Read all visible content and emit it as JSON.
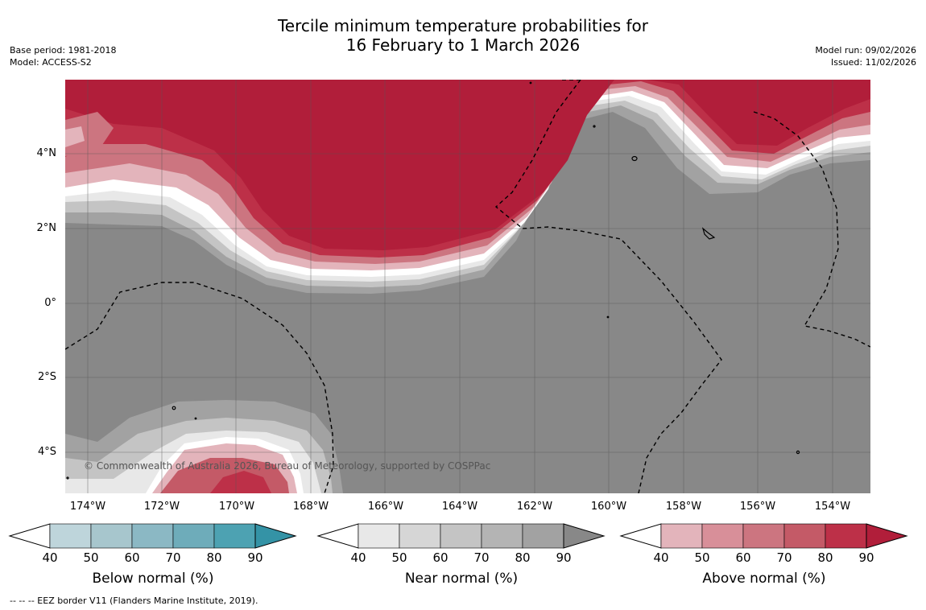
{
  "title": {
    "line1": "Tercile minimum temperature probabilities for",
    "line2": "16 February to 1 March 2026"
  },
  "meta_left": {
    "base_period": "Base period: 1981-2018",
    "model": "Model: ACCESS-S2"
  },
  "meta_right": {
    "model_run": "Model run: 09/02/2026",
    "issued": "Issued: 11/02/2026"
  },
  "lat_labels": [
    "4°N",
    "2°N",
    "0°",
    "2°S",
    "4°S"
  ],
  "lon_labels": [
    "174°W",
    "172°W",
    "170°W",
    "168°W",
    "166°W",
    "164°W",
    "162°W",
    "160°W",
    "158°W",
    "156°W",
    "154°W"
  ],
  "copyright": "© Commonwealth of Australia 2026, Bureau of Meteorology, supported by COSPPac",
  "footer": "--  --  -- EEZ border V11 (Flanders Marine Institute, 2019).",
  "colorbars": [
    {
      "label": "Below normal (%)",
      "ticks": [
        "40",
        "50",
        "60",
        "70",
        "80",
        "90"
      ],
      "colors": [
        "#bed5db",
        "#a7c6cd",
        "#8bb8c4",
        "#6eacba",
        "#4da2b2",
        "#3493a6"
      ]
    },
    {
      "label": "Near normal (%)",
      "ticks": [
        "40",
        "50",
        "60",
        "70",
        "80",
        "90"
      ],
      "colors": [
        "#e8e8e8",
        "#d6d6d6",
        "#c4c4c4",
        "#b4b4b4",
        "#a2a2a2",
        "#888888"
      ]
    },
    {
      "label": "Above normal (%)",
      "ticks": [
        "40",
        "50",
        "60",
        "70",
        "80",
        "90"
      ],
      "colors": [
        "#e3b4bb",
        "#d88f99",
        "#cc7580",
        "#c45a67",
        "#bd3048",
        "#b11e3a"
      ]
    }
  ]
}
